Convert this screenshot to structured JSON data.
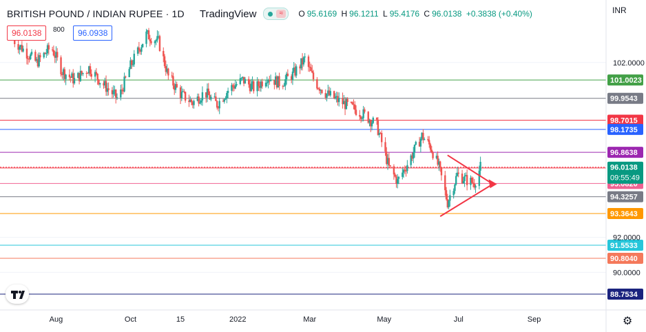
{
  "header": {
    "symbol": "BRITISH POUND / INDIAN RUPEE · 1D",
    "brand": "TradingView",
    "ohlc": {
      "open_label": "O",
      "open": "95.6169",
      "high_label": "H",
      "high": "96.1211",
      "low_label": "L",
      "low": "95.4176",
      "close_label": "C",
      "close": "96.0138",
      "change": "+0.3838 (+0.40%)"
    },
    "sell_price": "96.0138",
    "spread": "800",
    "buy_price": "96.0938",
    "currency": "INR"
  },
  "icons": {
    "status": "market-open-dot",
    "waves": "wave-icon",
    "logo": "tradingview-logo-icon",
    "settings": "gear-icon"
  },
  "chart_data": {
    "type": "candlestick",
    "title": "BRITISH POUND / INDIAN RUPEE · 1D",
    "x_tick_labels": [
      "Aug",
      "Oct",
      "15",
      "2022",
      "Mar",
      "May",
      "Jul",
      "Sep"
    ],
    "y_tick_labels": [
      "102.0000",
      "92.0000",
      "90.0000"
    ],
    "y_range": [
      88.4,
      104.0
    ],
    "price_path": [
      {
        "date": "2021-07-01",
        "close": 103.3
      },
      {
        "date": "2021-07-20",
        "close": 102.0
      },
      {
        "date": "2021-08-01",
        "close": 102.9
      },
      {
        "date": "2021-08-10",
        "close": 101.5
      },
      {
        "date": "2021-08-20",
        "close": 101.0
      },
      {
        "date": "2021-09-01",
        "close": 101.7
      },
      {
        "date": "2021-09-12",
        "close": 100.8
      },
      {
        "date": "2021-09-25",
        "close": 99.9
      },
      {
        "date": "2021-10-05",
        "close": 101.8
      },
      {
        "date": "2021-10-18",
        "close": 103.6
      },
      {
        "date": "2021-10-28",
        "close": 103.2
      },
      {
        "date": "2021-11-05",
        "close": 101.2
      },
      {
        "date": "2021-11-15",
        "close": 100.2
      },
      {
        "date": "2021-11-25",
        "close": 99.7
      },
      {
        "date": "2021-12-05",
        "close": 100.3
      },
      {
        "date": "2021-12-15",
        "close": 99.6
      },
      {
        "date": "2021-12-25",
        "close": 100.5
      },
      {
        "date": "2022-01-05",
        "close": 101.0
      },
      {
        "date": "2022-01-15",
        "close": 100.5
      },
      {
        "date": "2022-01-25",
        "close": 101.2
      },
      {
        "date": "2022-02-05",
        "close": 100.8
      },
      {
        "date": "2022-02-15",
        "close": 101.3
      },
      {
        "date": "2022-02-25",
        "close": 102.2
      },
      {
        "date": "2022-03-05",
        "close": 100.9
      },
      {
        "date": "2022-03-15",
        "close": 100.2
      },
      {
        "date": "2022-03-25",
        "close": 99.8
      },
      {
        "date": "2022-04-05",
        "close": 99.4
      },
      {
        "date": "2022-04-15",
        "close": 99.0
      },
      {
        "date": "2022-04-25",
        "close": 98.4
      },
      {
        "date": "2022-05-05",
        "close": 96.0
      },
      {
        "date": "2022-05-12",
        "close": 95.2
      },
      {
        "date": "2022-05-20",
        "close": 96.2
      },
      {
        "date": "2022-06-01",
        "close": 97.8
      },
      {
        "date": "2022-06-08",
        "close": 97.2
      },
      {
        "date": "2022-06-15",
        "close": 96.0
      },
      {
        "date": "2022-06-22",
        "close": 94.0
      },
      {
        "date": "2022-06-30",
        "close": 95.6
      },
      {
        "date": "2022-07-07",
        "close": 95.3
      },
      {
        "date": "2022-07-14",
        "close": 95.1
      },
      {
        "date": "2022-07-19",
        "close": 96.0138
      }
    ],
    "horizontal_levels": [
      {
        "price": 101.0023,
        "label": "101.0023",
        "color": "#43a047"
      },
      {
        "price": 99.9543,
        "label": "99.9543",
        "color": "#787b86"
      },
      {
        "price": 98.7015,
        "label": "98.7015",
        "color": "#f23645"
      },
      {
        "price": 98.1735,
        "label": "98.1735",
        "color": "#2962ff"
      },
      {
        "price": 96.8638,
        "label": "96.8638",
        "color": "#9c27b0"
      },
      {
        "price": 95.971,
        "label": "95.9710",
        "color": "#f23645"
      },
      {
        "price": 95.082,
        "label": "95.0820",
        "color": "#f06292"
      },
      {
        "price": 94.3257,
        "label": "94.3257",
        "color": "#787b86"
      },
      {
        "price": 93.3643,
        "label": "93.3643",
        "color": "#ff9800"
      },
      {
        "price": 91.5533,
        "label": "91.5533",
        "color": "#26c6da"
      },
      {
        "price": 90.804,
        "label": "90.8040",
        "color": "#f4795b"
      },
      {
        "price": 88.7534,
        "label": "88.7534",
        "color": "#1a237e"
      }
    ],
    "current_price": {
      "price": 96.0138,
      "label": "96.0138",
      "countdown": "09:55:49",
      "color": "#089981"
    },
    "triangle_pattern": {
      "upper": [
        {
          "date": "2022-06-22",
          "price": 96.7
        },
        {
          "date": "2022-07-28",
          "price": 95.1
        }
      ],
      "lower": [
        {
          "date": "2022-06-16",
          "price": 93.2
        },
        {
          "date": "2022-07-28",
          "price": 95.0
        }
      ],
      "color": "#f23645"
    }
  }
}
